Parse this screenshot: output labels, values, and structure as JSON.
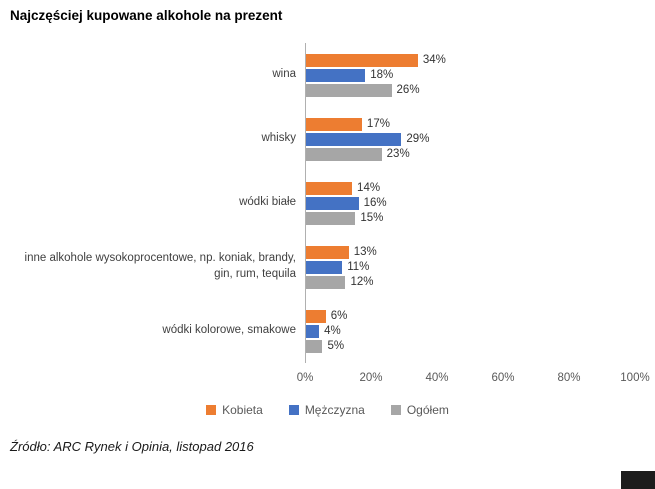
{
  "chart_data": {
    "type": "bar",
    "orientation": "horizontal",
    "title": "Najczęściej kupowane alkohole na prezent",
    "categories": [
      "wina",
      "whisky",
      "wódki białe",
      "inne alkohole wysokoprocentowe, np. koniak, brandy, gin, rum, tequila",
      "wódki kolorowe, smakowe"
    ],
    "series": [
      {
        "name": "Kobieta",
        "color": "#ED7D31",
        "values": [
          34,
          17,
          14,
          13,
          6
        ]
      },
      {
        "name": "Mężczyzna",
        "color": "#4472C4",
        "values": [
          18,
          29,
          16,
          11,
          4
        ]
      },
      {
        "name": "Ogółem",
        "color": "#A6A6A6",
        "values": [
          26,
          23,
          15,
          12,
          5
        ]
      }
    ],
    "xlim": [
      0,
      100
    ],
    "x_ticks": [
      "0%",
      "20%",
      "40%",
      "60%",
      "80%",
      "100%"
    ],
    "value_suffix": "%",
    "legend_position": "bottom",
    "grid": false,
    "axis_line_color": "#b0b0b0"
  },
  "source": "Źródło: ARC Rynek i Opinia, listopad 2016"
}
